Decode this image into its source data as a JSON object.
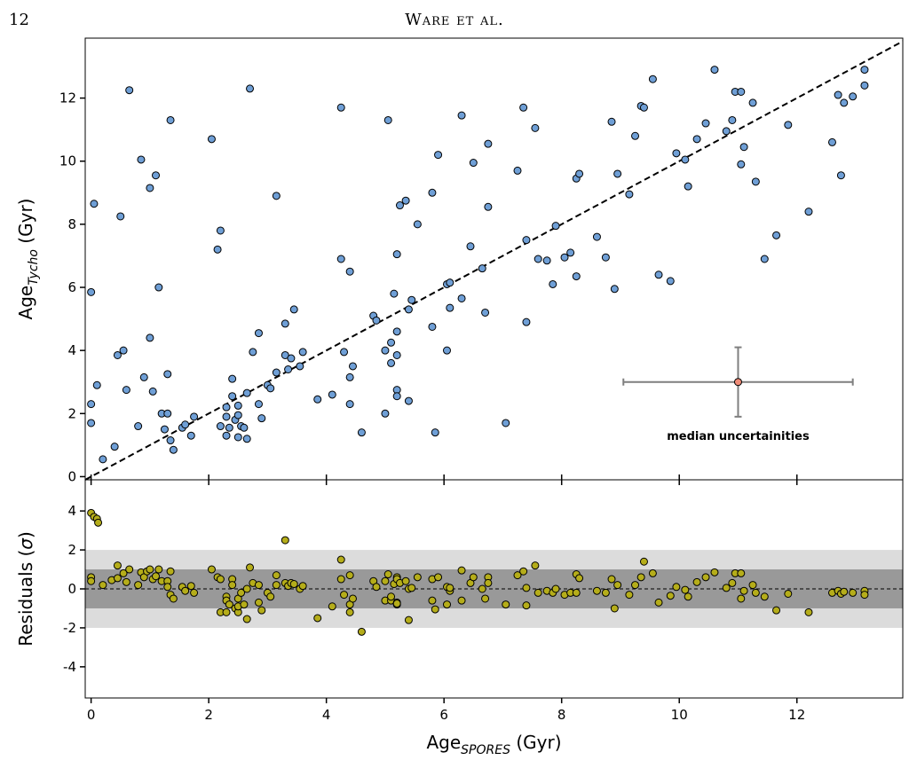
{
  "page": {
    "number": "12",
    "running_head": "Ware et al."
  },
  "colors": {
    "top_points": "#6f9fd6",
    "resid_points": "#b5ad1a",
    "median_point": "#f08c78",
    "errorbar": "#7f7f7f",
    "band_1sigma": "#999999",
    "band_2sigma": "#dcdcdc"
  },
  "chart_data": [
    {
      "type": "scatter",
      "panel": "top",
      "xlim": [
        -0.1,
        13.8
      ],
      "ylim": [
        -0.1,
        13.9
      ],
      "yticks": [
        0,
        2,
        4,
        6,
        8,
        10,
        12
      ],
      "ylabel": {
        "main": "Age",
        "sub": "Tycho",
        "unit": " (Gyr)"
      },
      "reference_line": {
        "type": "one-to-one",
        "style": "dashed"
      },
      "annotation": {
        "text": "median uncertainities",
        "point": [
          11.0,
          3.0
        ],
        "xerr": [
          9.05,
          12.95
        ],
        "yerr": [
          1.9,
          4.1
        ]
      },
      "points": [
        [
          0.0,
          5.85
        ],
        [
          0.0,
          1.7
        ],
        [
          0.0,
          2.3
        ],
        [
          0.05,
          8.65
        ],
        [
          0.1,
          2.9
        ],
        [
          0.2,
          0.55
        ],
        [
          0.4,
          0.95
        ],
        [
          0.45,
          3.85
        ],
        [
          0.5,
          8.25
        ],
        [
          0.55,
          4.0
        ],
        [
          0.6,
          2.75
        ],
        [
          0.65,
          12.25
        ],
        [
          0.8,
          1.6
        ],
        [
          0.85,
          10.05
        ],
        [
          0.9,
          3.15
        ],
        [
          1.0,
          4.4
        ],
        [
          1.0,
          9.15
        ],
        [
          1.05,
          2.7
        ],
        [
          1.1,
          9.55
        ],
        [
          1.15,
          6.0
        ],
        [
          1.2,
          2.0
        ],
        [
          1.25,
          1.5
        ],
        [
          1.3,
          2.0
        ],
        [
          1.3,
          3.25
        ],
        [
          1.35,
          11.3
        ],
        [
          1.35,
          1.15
        ],
        [
          1.4,
          0.85
        ],
        [
          1.55,
          1.55
        ],
        [
          1.6,
          1.65
        ],
        [
          1.7,
          1.3
        ],
        [
          1.75,
          1.9
        ],
        [
          2.05,
          10.7
        ],
        [
          2.15,
          7.2
        ],
        [
          2.2,
          7.8
        ],
        [
          2.2,
          1.6
        ],
        [
          2.3,
          1.3
        ],
        [
          2.3,
          1.9
        ],
        [
          2.3,
          2.2
        ],
        [
          2.35,
          1.55
        ],
        [
          2.4,
          2.55
        ],
        [
          2.4,
          3.1
        ],
        [
          2.45,
          1.8
        ],
        [
          2.5,
          1.25
        ],
        [
          2.5,
          1.95
        ],
        [
          2.5,
          2.25
        ],
        [
          2.55,
          1.6
        ],
        [
          2.6,
          1.55
        ],
        [
          2.65,
          2.65
        ],
        [
          2.65,
          1.2
        ],
        [
          2.7,
          12.3
        ],
        [
          2.75,
          3.95
        ],
        [
          2.85,
          4.55
        ],
        [
          2.85,
          2.3
        ],
        [
          2.9,
          1.85
        ],
        [
          3.0,
          2.9
        ],
        [
          3.05,
          2.8
        ],
        [
          3.15,
          3.3
        ],
        [
          3.15,
          8.9
        ],
        [
          3.3,
          3.85
        ],
        [
          3.3,
          4.85
        ],
        [
          3.35,
          3.4
        ],
        [
          3.4,
          3.75
        ],
        [
          3.45,
          5.3
        ],
        [
          3.55,
          3.5
        ],
        [
          3.6,
          3.95
        ],
        [
          3.85,
          2.45
        ],
        [
          4.1,
          2.6
        ],
        [
          4.25,
          6.9
        ],
        [
          4.25,
          11.7
        ],
        [
          4.3,
          3.95
        ],
        [
          4.4,
          2.3
        ],
        [
          4.4,
          3.15
        ],
        [
          4.4,
          6.5
        ],
        [
          4.45,
          3.5
        ],
        [
          4.6,
          1.4
        ],
        [
          4.8,
          5.1
        ],
        [
          4.85,
          4.95
        ],
        [
          5.0,
          2.0
        ],
        [
          5.0,
          4.0
        ],
        [
          5.05,
          11.3
        ],
        [
          5.1,
          4.25
        ],
        [
          5.1,
          3.6
        ],
        [
          5.15,
          5.8
        ],
        [
          5.2,
          2.75
        ],
        [
          5.2,
          3.85
        ],
        [
          5.2,
          4.6
        ],
        [
          5.2,
          7.05
        ],
        [
          5.2,
          2.55
        ],
        [
          5.25,
          8.6
        ],
        [
          5.35,
          8.75
        ],
        [
          5.4,
          5.3
        ],
        [
          5.4,
          2.4
        ],
        [
          5.45,
          5.6
        ],
        [
          5.55,
          8.0
        ],
        [
          5.8,
          4.75
        ],
        [
          5.8,
          9.0
        ],
        [
          5.85,
          1.4
        ],
        [
          5.9,
          10.2
        ],
        [
          6.05,
          6.1
        ],
        [
          6.05,
          4.0
        ],
        [
          6.1,
          6.15
        ],
        [
          6.1,
          5.35
        ],
        [
          6.3,
          11.45
        ],
        [
          6.3,
          5.65
        ],
        [
          6.45,
          7.3
        ],
        [
          6.5,
          9.95
        ],
        [
          6.65,
          6.6
        ],
        [
          6.7,
          5.2
        ],
        [
          6.75,
          10.55
        ],
        [
          6.75,
          8.55
        ],
        [
          7.05,
          1.7
        ],
        [
          7.25,
          9.7
        ],
        [
          7.35,
          11.7
        ],
        [
          7.4,
          7.5
        ],
        [
          7.4,
          4.9
        ],
        [
          7.55,
          11.05
        ],
        [
          7.6,
          6.9
        ],
        [
          7.75,
          6.85
        ],
        [
          7.85,
          6.1
        ],
        [
          7.9,
          7.95
        ],
        [
          8.05,
          6.95
        ],
        [
          8.15,
          7.1
        ],
        [
          8.25,
          9.45
        ],
        [
          8.25,
          6.35
        ],
        [
          8.3,
          9.6
        ],
        [
          8.6,
          7.6
        ],
        [
          8.75,
          6.95
        ],
        [
          8.85,
          11.25
        ],
        [
          8.9,
          5.95
        ],
        [
          8.95,
          9.6
        ],
        [
          9.15,
          8.95
        ],
        [
          9.25,
          10.8
        ],
        [
          9.35,
          11.75
        ],
        [
          9.4,
          11.7
        ],
        [
          9.55,
          12.6
        ],
        [
          9.65,
          6.4
        ],
        [
          9.85,
          6.2
        ],
        [
          9.95,
          10.25
        ],
        [
          10.1,
          10.05
        ],
        [
          10.15,
          9.2
        ],
        [
          10.3,
          10.7
        ],
        [
          10.45,
          11.2
        ],
        [
          10.6,
          12.9
        ],
        [
          10.8,
          10.95
        ],
        [
          10.9,
          11.3
        ],
        [
          10.95,
          12.2
        ],
        [
          11.05,
          12.2
        ],
        [
          11.05,
          9.9
        ],
        [
          11.1,
          10.45
        ],
        [
          11.25,
          11.85
        ],
        [
          11.3,
          9.35
        ],
        [
          11.45,
          6.9
        ],
        [
          11.65,
          7.65
        ],
        [
          11.85,
          11.15
        ],
        [
          12.2,
          8.4
        ],
        [
          12.6,
          10.6
        ],
        [
          12.7,
          12.1
        ],
        [
          12.75,
          9.55
        ],
        [
          12.8,
          11.85
        ],
        [
          12.95,
          12.05
        ],
        [
          13.15,
          12.9
        ],
        [
          13.15,
          12.4
        ]
      ]
    },
    {
      "type": "scatter",
      "panel": "residuals",
      "xlim": [
        -0.1,
        13.8
      ],
      "ylim": [
        -5.6,
        5.6
      ],
      "xticks": [
        0,
        2,
        4,
        6,
        8,
        10,
        12
      ],
      "yticks": [
        -4,
        -2,
        0,
        2,
        4
      ],
      "xlabel": {
        "main": "Age",
        "sub": "SPORES",
        "unit": " (Gyr)"
      },
      "ylabel": {
        "main": "Residuals (",
        "symbol": "σ",
        "unit": ")"
      },
      "bands": [
        {
          "sigma": 2,
          "range": [
            -2,
            2
          ]
        },
        {
          "sigma": 1,
          "range": [
            -1,
            1
          ]
        }
      ],
      "reference_line": {
        "y": 0,
        "style": "dashed"
      },
      "points": [
        [
          0.0,
          3.9
        ],
        [
          0.05,
          3.7
        ],
        [
          0.1,
          3.6
        ],
        [
          0.12,
          3.4
        ],
        [
          0.0,
          0.6
        ],
        [
          0.0,
          0.4
        ],
        [
          0.2,
          0.2
        ],
        [
          0.35,
          0.45
        ],
        [
          0.45,
          0.55
        ],
        [
          0.45,
          1.2
        ],
        [
          0.55,
          0.8
        ],
        [
          0.6,
          0.35
        ],
        [
          0.65,
          1.0
        ],
        [
          0.8,
          0.2
        ],
        [
          0.85,
          0.85
        ],
        [
          0.9,
          0.6
        ],
        [
          0.95,
          0.9
        ],
        [
          1.0,
          1.0
        ],
        [
          1.05,
          0.5
        ],
        [
          1.1,
          0.65
        ],
        [
          1.15,
          1.0
        ],
        [
          1.2,
          0.4
        ],
        [
          1.3,
          0.4
        ],
        [
          1.3,
          0.1
        ],
        [
          1.35,
          0.9
        ],
        [
          1.35,
          -0.3
        ],
        [
          1.4,
          -0.5
        ],
        [
          1.55,
          0.1
        ],
        [
          1.6,
          -0.1
        ],
        [
          1.7,
          0.15
        ],
        [
          1.75,
          -0.2
        ],
        [
          2.05,
          1.0
        ],
        [
          2.15,
          0.6
        ],
        [
          2.2,
          0.5
        ],
        [
          2.2,
          -1.2
        ],
        [
          2.3,
          -0.4
        ],
        [
          2.3,
          -0.6
        ],
        [
          2.3,
          -1.2
        ],
        [
          2.35,
          -0.8
        ],
        [
          2.4,
          0.5
        ],
        [
          2.4,
          0.2
        ],
        [
          2.45,
          -1.0
        ],
        [
          2.5,
          -1.2
        ],
        [
          2.5,
          -0.9
        ],
        [
          2.5,
          -0.5
        ],
        [
          2.55,
          -0.2
        ],
        [
          2.6,
          -0.8
        ],
        [
          2.65,
          -1.55
        ],
        [
          2.65,
          0.0
        ],
        [
          2.7,
          1.1
        ],
        [
          2.75,
          0.3
        ],
        [
          2.85,
          0.2
        ],
        [
          2.85,
          -0.7
        ],
        [
          2.9,
          -1.1
        ],
        [
          3.0,
          -0.2
        ],
        [
          3.05,
          -0.4
        ],
        [
          3.15,
          0.2
        ],
        [
          3.15,
          0.7
        ],
        [
          3.3,
          0.3
        ],
        [
          3.3,
          2.5
        ],
        [
          3.35,
          0.15
        ],
        [
          3.4,
          0.3
        ],
        [
          3.45,
          0.25
        ],
        [
          3.55,
          0.0
        ],
        [
          3.6,
          0.15
        ],
        [
          3.85,
          -1.5
        ],
        [
          4.1,
          -0.9
        ],
        [
          4.25,
          0.5
        ],
        [
          4.25,
          1.5
        ],
        [
          4.3,
          -0.3
        ],
        [
          4.4,
          -1.2
        ],
        [
          4.4,
          -0.8
        ],
        [
          4.4,
          0.7
        ],
        [
          4.45,
          -0.5
        ],
        [
          4.6,
          -2.2
        ],
        [
          4.8,
          0.4
        ],
        [
          4.85,
          0.1
        ],
        [
          5.0,
          -0.6
        ],
        [
          5.0,
          0.4
        ],
        [
          5.05,
          0.75
        ],
        [
          5.1,
          -0.6
        ],
        [
          5.1,
          -0.4
        ],
        [
          5.15,
          0.25
        ],
        [
          5.2,
          -0.7
        ],
        [
          5.2,
          -0.8
        ],
        [
          5.2,
          0.6
        ],
        [
          5.2,
          0.5
        ],
        [
          5.2,
          -0.75
        ],
        [
          5.25,
          0.3
        ],
        [
          5.35,
          0.4
        ],
        [
          5.4,
          -1.6
        ],
        [
          5.4,
          0.0
        ],
        [
          5.45,
          0.05
        ],
        [
          5.55,
          0.6
        ],
        [
          5.8,
          -0.6
        ],
        [
          5.8,
          0.5
        ],
        [
          5.85,
          -1.05
        ],
        [
          5.9,
          0.6
        ],
        [
          6.05,
          0.1
        ],
        [
          6.05,
          -0.8
        ],
        [
          6.1,
          -0.1
        ],
        [
          6.1,
          0.05
        ],
        [
          6.3,
          0.95
        ],
        [
          6.3,
          -0.6
        ],
        [
          6.45,
          0.3
        ],
        [
          6.5,
          0.6
        ],
        [
          6.65,
          0.0
        ],
        [
          6.7,
          -0.5
        ],
        [
          6.75,
          0.6
        ],
        [
          6.75,
          0.3
        ],
        [
          7.05,
          -0.8
        ],
        [
          7.25,
          0.7
        ],
        [
          7.35,
          0.9
        ],
        [
          7.4,
          0.05
        ],
        [
          7.4,
          -0.85
        ],
        [
          7.55,
          1.2
        ],
        [
          7.6,
          -0.2
        ],
        [
          7.75,
          -0.1
        ],
        [
          7.85,
          -0.2
        ],
        [
          7.9,
          0.0
        ],
        [
          8.05,
          -0.3
        ],
        [
          8.15,
          -0.2
        ],
        [
          8.25,
          0.75
        ],
        [
          8.25,
          -0.2
        ],
        [
          8.3,
          0.55
        ],
        [
          8.6,
          -0.1
        ],
        [
          8.75,
          -0.2
        ],
        [
          8.85,
          0.5
        ],
        [
          8.9,
          -1.0
        ],
        [
          8.95,
          0.2
        ],
        [
          9.15,
          -0.3
        ],
        [
          9.25,
          0.2
        ],
        [
          9.35,
          0.6
        ],
        [
          9.4,
          1.4
        ],
        [
          9.55,
          0.8
        ],
        [
          9.65,
          -0.7
        ],
        [
          9.85,
          -0.35
        ],
        [
          9.95,
          0.1
        ],
        [
          10.1,
          -0.05
        ],
        [
          10.15,
          -0.4
        ],
        [
          10.3,
          0.35
        ],
        [
          10.45,
          0.6
        ],
        [
          10.6,
          0.85
        ],
        [
          10.8,
          0.05
        ],
        [
          10.9,
          0.3
        ],
        [
          10.95,
          0.8
        ],
        [
          11.05,
          0.8
        ],
        [
          11.05,
          -0.5
        ],
        [
          11.1,
          -0.1
        ],
        [
          11.25,
          0.2
        ],
        [
          11.3,
          -0.2
        ],
        [
          11.45,
          -0.4
        ],
        [
          11.65,
          -1.1
        ],
        [
          11.85,
          -0.25
        ],
        [
          12.2,
          -1.2
        ],
        [
          12.6,
          -0.2
        ],
        [
          12.7,
          -0.1
        ],
        [
          12.75,
          -0.25
        ],
        [
          12.8,
          -0.15
        ],
        [
          12.95,
          -0.2
        ],
        [
          13.15,
          -0.1
        ],
        [
          13.15,
          -0.3
        ]
      ]
    }
  ]
}
